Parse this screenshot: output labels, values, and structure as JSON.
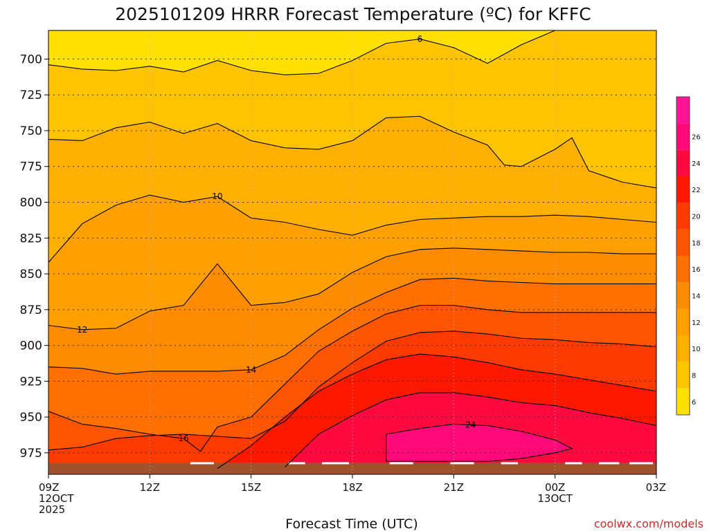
{
  "chart_data": {
    "type": "filled-contour",
    "title": "2025101209 HRRR Forecast Temperature (ºC) for KFFC",
    "xlabel": "Forecast Time (UTC)",
    "ylabel": "",
    "credit": "coolwx.com/models",
    "x_hours": [
      0,
      3,
      6,
      9,
      12,
      15,
      18
    ],
    "x_tick_labels": [
      {
        "line1": "09Z",
        "line2": "12OCT",
        "line3": "2025"
      },
      {
        "line1": "12Z",
        "line2": "",
        "line3": ""
      },
      {
        "line1": "15Z",
        "line2": "",
        "line3": ""
      },
      {
        "line1": "18Z",
        "line2": "",
        "line3": ""
      },
      {
        "line1": "21Z",
        "line2": "",
        "line3": ""
      },
      {
        "line1": "00Z",
        "line2": "13OCT",
        "line3": ""
      },
      {
        "line1": "03Z",
        "line2": "",
        "line3": ""
      }
    ],
    "y_pressure_ticks": [
      700,
      725,
      750,
      775,
      800,
      825,
      850,
      875,
      900,
      925,
      950,
      975
    ],
    "y_range_hpa": [
      680,
      990
    ],
    "x_range_hours": [
      0,
      18
    ],
    "colorbar": {
      "levels": [
        6,
        8,
        10,
        12,
        14,
        16,
        18,
        20,
        22,
        24,
        26
      ],
      "colors": [
        "#ffe000",
        "#ffc400",
        "#ffb000",
        "#ffa000",
        "#ff8c00",
        "#ff7000",
        "#ff5400",
        "#ff3a00",
        "#ff1800",
        "#ff0a40",
        "#ff0a78",
        "#ff1496"
      ]
    },
    "contours": [
      {
        "level": 6,
        "label": "6",
        "label_at_hour": 11,
        "points": [
          [
            0,
            704
          ],
          [
            1,
            707
          ],
          [
            2,
            708
          ],
          [
            3,
            705
          ],
          [
            4,
            709
          ],
          [
            5,
            701
          ],
          [
            6,
            708
          ],
          [
            7,
            711
          ],
          [
            8,
            710
          ],
          [
            9,
            701
          ],
          [
            10,
            689
          ],
          [
            11,
            686
          ],
          [
            12,
            692
          ],
          [
            13,
            703
          ],
          [
            14,
            690
          ],
          [
            15,
            680
          ],
          [
            16,
            678
          ],
          [
            17,
            676
          ],
          [
            18,
            676
          ]
        ]
      },
      {
        "level": 8,
        "label": "",
        "label_at_hour": -1,
        "points": [
          [
            0,
            756
          ],
          [
            1,
            757
          ],
          [
            2,
            748
          ],
          [
            3,
            744
          ],
          [
            4,
            752
          ],
          [
            5,
            745
          ],
          [
            6,
            757
          ],
          [
            7,
            762
          ],
          [
            8,
            763
          ],
          [
            9,
            757
          ],
          [
            10,
            741
          ],
          [
            11,
            740
          ],
          [
            12,
            751
          ],
          [
            13,
            760
          ],
          [
            13.5,
            774
          ],
          [
            14,
            775
          ],
          [
            15,
            763
          ],
          [
            15.5,
            755
          ],
          [
            16,
            778
          ],
          [
            17,
            786
          ],
          [
            18,
            790
          ]
        ]
      },
      {
        "level": 10,
        "label": "10",
        "label_at_hour": 5,
        "points": [
          [
            0,
            842
          ],
          [
            1,
            815
          ],
          [
            2,
            802
          ],
          [
            3,
            795
          ],
          [
            4,
            800
          ],
          [
            5,
            796
          ],
          [
            6,
            811
          ],
          [
            7,
            814
          ],
          [
            8,
            819
          ],
          [
            9,
            823
          ],
          [
            10,
            816
          ],
          [
            11,
            812
          ],
          [
            12,
            811
          ],
          [
            13,
            810
          ],
          [
            14,
            810
          ],
          [
            15,
            809
          ],
          [
            16,
            810
          ],
          [
            17,
            812
          ],
          [
            18,
            814
          ]
        ]
      },
      {
        "level": 12,
        "label": "12",
        "label_at_hour": 1,
        "points": [
          [
            0,
            886
          ],
          [
            1,
            889
          ],
          [
            2,
            888
          ],
          [
            3,
            876
          ],
          [
            4,
            872
          ],
          [
            5,
            843
          ],
          [
            6,
            872
          ],
          [
            7,
            870
          ],
          [
            8,
            864
          ],
          [
            9,
            849
          ],
          [
            10,
            838
          ],
          [
            11,
            833
          ],
          [
            12,
            832
          ],
          [
            13,
            833
          ],
          [
            14,
            834
          ],
          [
            15,
            835
          ],
          [
            16,
            835
          ],
          [
            17,
            836
          ],
          [
            18,
            836
          ]
        ]
      },
      {
        "level": 14,
        "label": "14",
        "label_at_hour": 6,
        "points": [
          [
            0,
            915
          ],
          [
            1,
            916
          ],
          [
            2,
            920
          ],
          [
            3,
            918
          ],
          [
            4,
            918
          ],
          [
            5,
            918
          ],
          [
            6,
            917
          ],
          [
            7,
            907
          ],
          [
            8,
            889
          ],
          [
            9,
            874
          ],
          [
            10,
            863
          ],
          [
            11,
            854
          ],
          [
            12,
            853
          ],
          [
            13,
            855
          ],
          [
            14,
            856
          ],
          [
            15,
            857
          ],
          [
            16,
            857
          ],
          [
            17,
            857
          ],
          [
            18,
            857
          ]
        ]
      },
      {
        "level": 16,
        "label": "16",
        "label_at_hour": 4,
        "points": [
          [
            0,
            946
          ],
          [
            1,
            955
          ],
          [
            2,
            958
          ],
          [
            3,
            962
          ],
          [
            4,
            965
          ],
          [
            4.5,
            974
          ],
          [
            5,
            957
          ],
          [
            6,
            950
          ],
          [
            7,
            927
          ],
          [
            8,
            904
          ],
          [
            9,
            890
          ],
          [
            10,
            878
          ],
          [
            11,
            872
          ],
          [
            12,
            872
          ],
          [
            13,
            875
          ],
          [
            14,
            877
          ],
          [
            15,
            877
          ],
          [
            16,
            877
          ],
          [
            17,
            877
          ],
          [
            18,
            877
          ]
        ]
      },
      {
        "level": 18,
        "label": "",
        "label_at_hour": -1,
        "points": [
          [
            0,
            973
          ],
          [
            1,
            971
          ],
          [
            2,
            965
          ],
          [
            3,
            963
          ],
          [
            4,
            962
          ],
          [
            6,
            965
          ],
          [
            7,
            953
          ],
          [
            8,
            929
          ],
          [
            9,
            912
          ],
          [
            10,
            897
          ],
          [
            11,
            891
          ],
          [
            12,
            890
          ],
          [
            13,
            892
          ],
          [
            14,
            895
          ],
          [
            15,
            896
          ],
          [
            16,
            898
          ],
          [
            17,
            899
          ],
          [
            18,
            901
          ]
        ]
      },
      {
        "level": 20,
        "label": "",
        "label_at_hour": -1,
        "points": [
          [
            5,
            986
          ],
          [
            6,
            970
          ],
          [
            7,
            950
          ],
          [
            8,
            932
          ],
          [
            9,
            920
          ],
          [
            10,
            910
          ],
          [
            11,
            906
          ],
          [
            12,
            908
          ],
          [
            13,
            912
          ],
          [
            14,
            917
          ],
          [
            15,
            920
          ],
          [
            16,
            924
          ],
          [
            17,
            928
          ],
          [
            18,
            932
          ]
        ]
      },
      {
        "level": 22,
        "label": "",
        "label_at_hour": -1,
        "points": [
          [
            7,
            985
          ],
          [
            8,
            962
          ],
          [
            9,
            949
          ],
          [
            10,
            938
          ],
          [
            11,
            933
          ],
          [
            12,
            933
          ],
          [
            13,
            936
          ],
          [
            14,
            940
          ],
          [
            15,
            942
          ],
          [
            16,
            947
          ],
          [
            17,
            951
          ],
          [
            18,
            956
          ]
        ]
      },
      {
        "level": 24,
        "label": "24",
        "label_at_hour": 12.5,
        "points": [
          [
            10,
            962
          ],
          [
            11,
            958
          ],
          [
            12,
            955
          ],
          [
            13,
            956
          ],
          [
            14,
            960
          ],
          [
            15,
            966
          ],
          [
            15.5,
            972
          ],
          [
            15,
            975
          ],
          [
            14,
            979
          ],
          [
            13,
            981
          ],
          [
            12,
            981
          ],
          [
            11,
            981
          ],
          [
            10,
            981
          ]
        ]
      }
    ],
    "terrain_color": "#a0522d"
  }
}
